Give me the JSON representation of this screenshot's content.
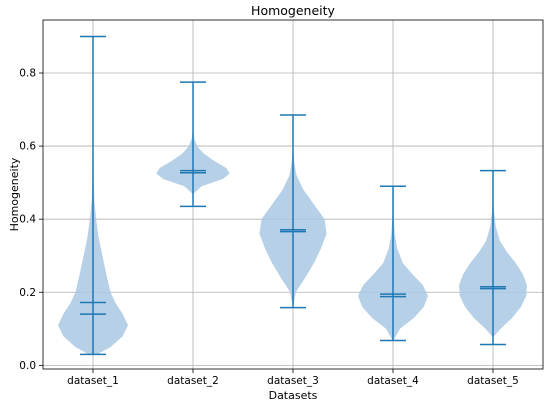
{
  "chart_data": {
    "type": "violin",
    "title": "Homogeneity",
    "xlabel": "Datasets",
    "ylabel": "Homogeneity",
    "ylim": [
      -0.01,
      0.945
    ],
    "yticks": [
      0.0,
      0.2,
      0.4,
      0.6,
      0.8
    ],
    "ytick_labels": [
      "0.0",
      "0.2",
      "0.4",
      "0.6",
      "0.8"
    ],
    "grid": true,
    "colors": {
      "body": "#a9c9e3",
      "line": "#1f77b4"
    },
    "categories": [
      "dataset_1",
      "dataset_2",
      "dataset_3",
      "dataset_4",
      "dataset_5"
    ],
    "series": [
      {
        "category": "dataset_1",
        "min": 0.03,
        "max": 0.9,
        "mean": 0.172,
        "median": 0.14,
        "profile": [
          [
            0.03,
            0.012
          ],
          [
            0.05,
            0.05
          ],
          [
            0.08,
            0.085
          ],
          [
            0.11,
            0.1
          ],
          [
            0.14,
            0.085
          ],
          [
            0.17,
            0.065
          ],
          [
            0.2,
            0.05
          ],
          [
            0.25,
            0.038
          ],
          [
            0.3,
            0.027
          ],
          [
            0.35,
            0.016
          ],
          [
            0.4,
            0.009
          ],
          [
            0.45,
            0.004
          ],
          [
            0.5,
            0.002
          ],
          [
            0.6,
            0.001
          ],
          [
            0.9,
            0.0005
          ]
        ]
      },
      {
        "category": "dataset_2",
        "min": 0.435,
        "max": 0.775,
        "mean": 0.533,
        "median": 0.527,
        "profile": [
          [
            0.47,
            0.002
          ],
          [
            0.49,
            0.025
          ],
          [
            0.5,
            0.055
          ],
          [
            0.51,
            0.085
          ],
          [
            0.525,
            0.105
          ],
          [
            0.54,
            0.095
          ],
          [
            0.56,
            0.06
          ],
          [
            0.58,
            0.03
          ],
          [
            0.6,
            0.012
          ],
          [
            0.62,
            0.004
          ],
          [
            0.64,
            0.001
          ]
        ]
      },
      {
        "category": "dataset_3",
        "min": 0.158,
        "max": 0.685,
        "mean": 0.371,
        "median": 0.366,
        "profile": [
          [
            0.16,
            0.001
          ],
          [
            0.2,
            0.008
          ],
          [
            0.24,
            0.035
          ],
          [
            0.28,
            0.06
          ],
          [
            0.32,
            0.08
          ],
          [
            0.36,
            0.096
          ],
          [
            0.4,
            0.09
          ],
          [
            0.44,
            0.06
          ],
          [
            0.48,
            0.03
          ],
          [
            0.52,
            0.01
          ],
          [
            0.56,
            0.003
          ],
          [
            0.6,
            0.001
          ]
        ]
      },
      {
        "category": "dataset_4",
        "min": 0.068,
        "max": 0.49,
        "mean": 0.195,
        "median": 0.188,
        "profile": [
          [
            0.07,
            0.002
          ],
          [
            0.1,
            0.02
          ],
          [
            0.13,
            0.06
          ],
          [
            0.16,
            0.088
          ],
          [
            0.19,
            0.1
          ],
          [
            0.22,
            0.085
          ],
          [
            0.25,
            0.055
          ],
          [
            0.28,
            0.028
          ],
          [
            0.32,
            0.012
          ],
          [
            0.36,
            0.005
          ],
          [
            0.4,
            0.002
          ],
          [
            0.45,
            0.001
          ]
        ]
      },
      {
        "category": "dataset_5",
        "min": 0.057,
        "max": 0.533,
        "mean": 0.215,
        "median": 0.21,
        "profile": [
          [
            0.08,
            0.003
          ],
          [
            0.1,
            0.022
          ],
          [
            0.13,
            0.055
          ],
          [
            0.16,
            0.08
          ],
          [
            0.19,
            0.095
          ],
          [
            0.22,
            0.097
          ],
          [
            0.25,
            0.085
          ],
          [
            0.28,
            0.065
          ],
          [
            0.31,
            0.04
          ],
          [
            0.34,
            0.02
          ],
          [
            0.38,
            0.008
          ],
          [
            0.42,
            0.003
          ],
          [
            0.46,
            0.001
          ]
        ]
      }
    ]
  }
}
